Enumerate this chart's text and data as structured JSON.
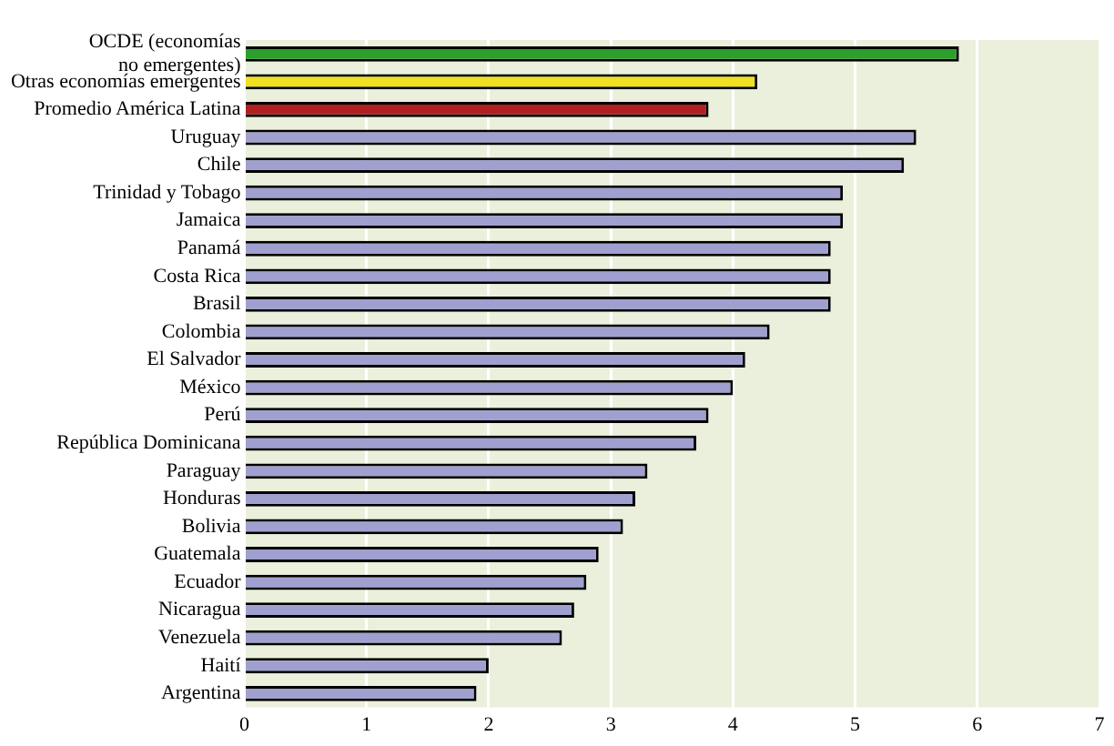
{
  "chart_data": {
    "type": "bar",
    "orientation": "horizontal",
    "categories": [
      "OCDE (economías\nno emergentes)",
      "Otras economías emergentes",
      "Promedio América Latina",
      "Uruguay",
      "Chile",
      "Trinidad y Tobago",
      "Jamaica",
      "Panamá",
      "Costa Rica",
      "Brasil",
      "Colombia",
      "El Salvador",
      "México",
      "Perú",
      "República Dominicana",
      "Paraguay",
      "Honduras",
      "Bolivia",
      "Guatemala",
      "Ecuador",
      "Nicaragua",
      "Venezuela",
      "Haití",
      "Argentina"
    ],
    "values": [
      5.85,
      4.2,
      3.8,
      5.5,
      5.4,
      4.9,
      4.9,
      4.8,
      4.8,
      4.8,
      4.3,
      4.1,
      4.0,
      3.8,
      3.7,
      3.3,
      3.2,
      3.1,
      2.9,
      2.8,
      2.7,
      2.6,
      2.0,
      1.9
    ],
    "colors": [
      "#2ca02c",
      "#f0e020",
      "#b02020",
      "#a0a0d0",
      "#a0a0d0",
      "#a0a0d0",
      "#a0a0d0",
      "#a0a0d0",
      "#a0a0d0",
      "#a0a0d0",
      "#a0a0d0",
      "#a0a0d0",
      "#a0a0d0",
      "#a0a0d0",
      "#a0a0d0",
      "#a0a0d0",
      "#a0a0d0",
      "#a0a0d0",
      "#a0a0d0",
      "#a0a0d0",
      "#a0a0d0",
      "#a0a0d0",
      "#a0a0d0",
      "#a0a0d0"
    ],
    "xlim": [
      0,
      7
    ],
    "xticks": [
      0,
      1,
      2,
      3,
      4,
      5,
      6,
      7
    ],
    "grid": "x",
    "legend": false
  }
}
